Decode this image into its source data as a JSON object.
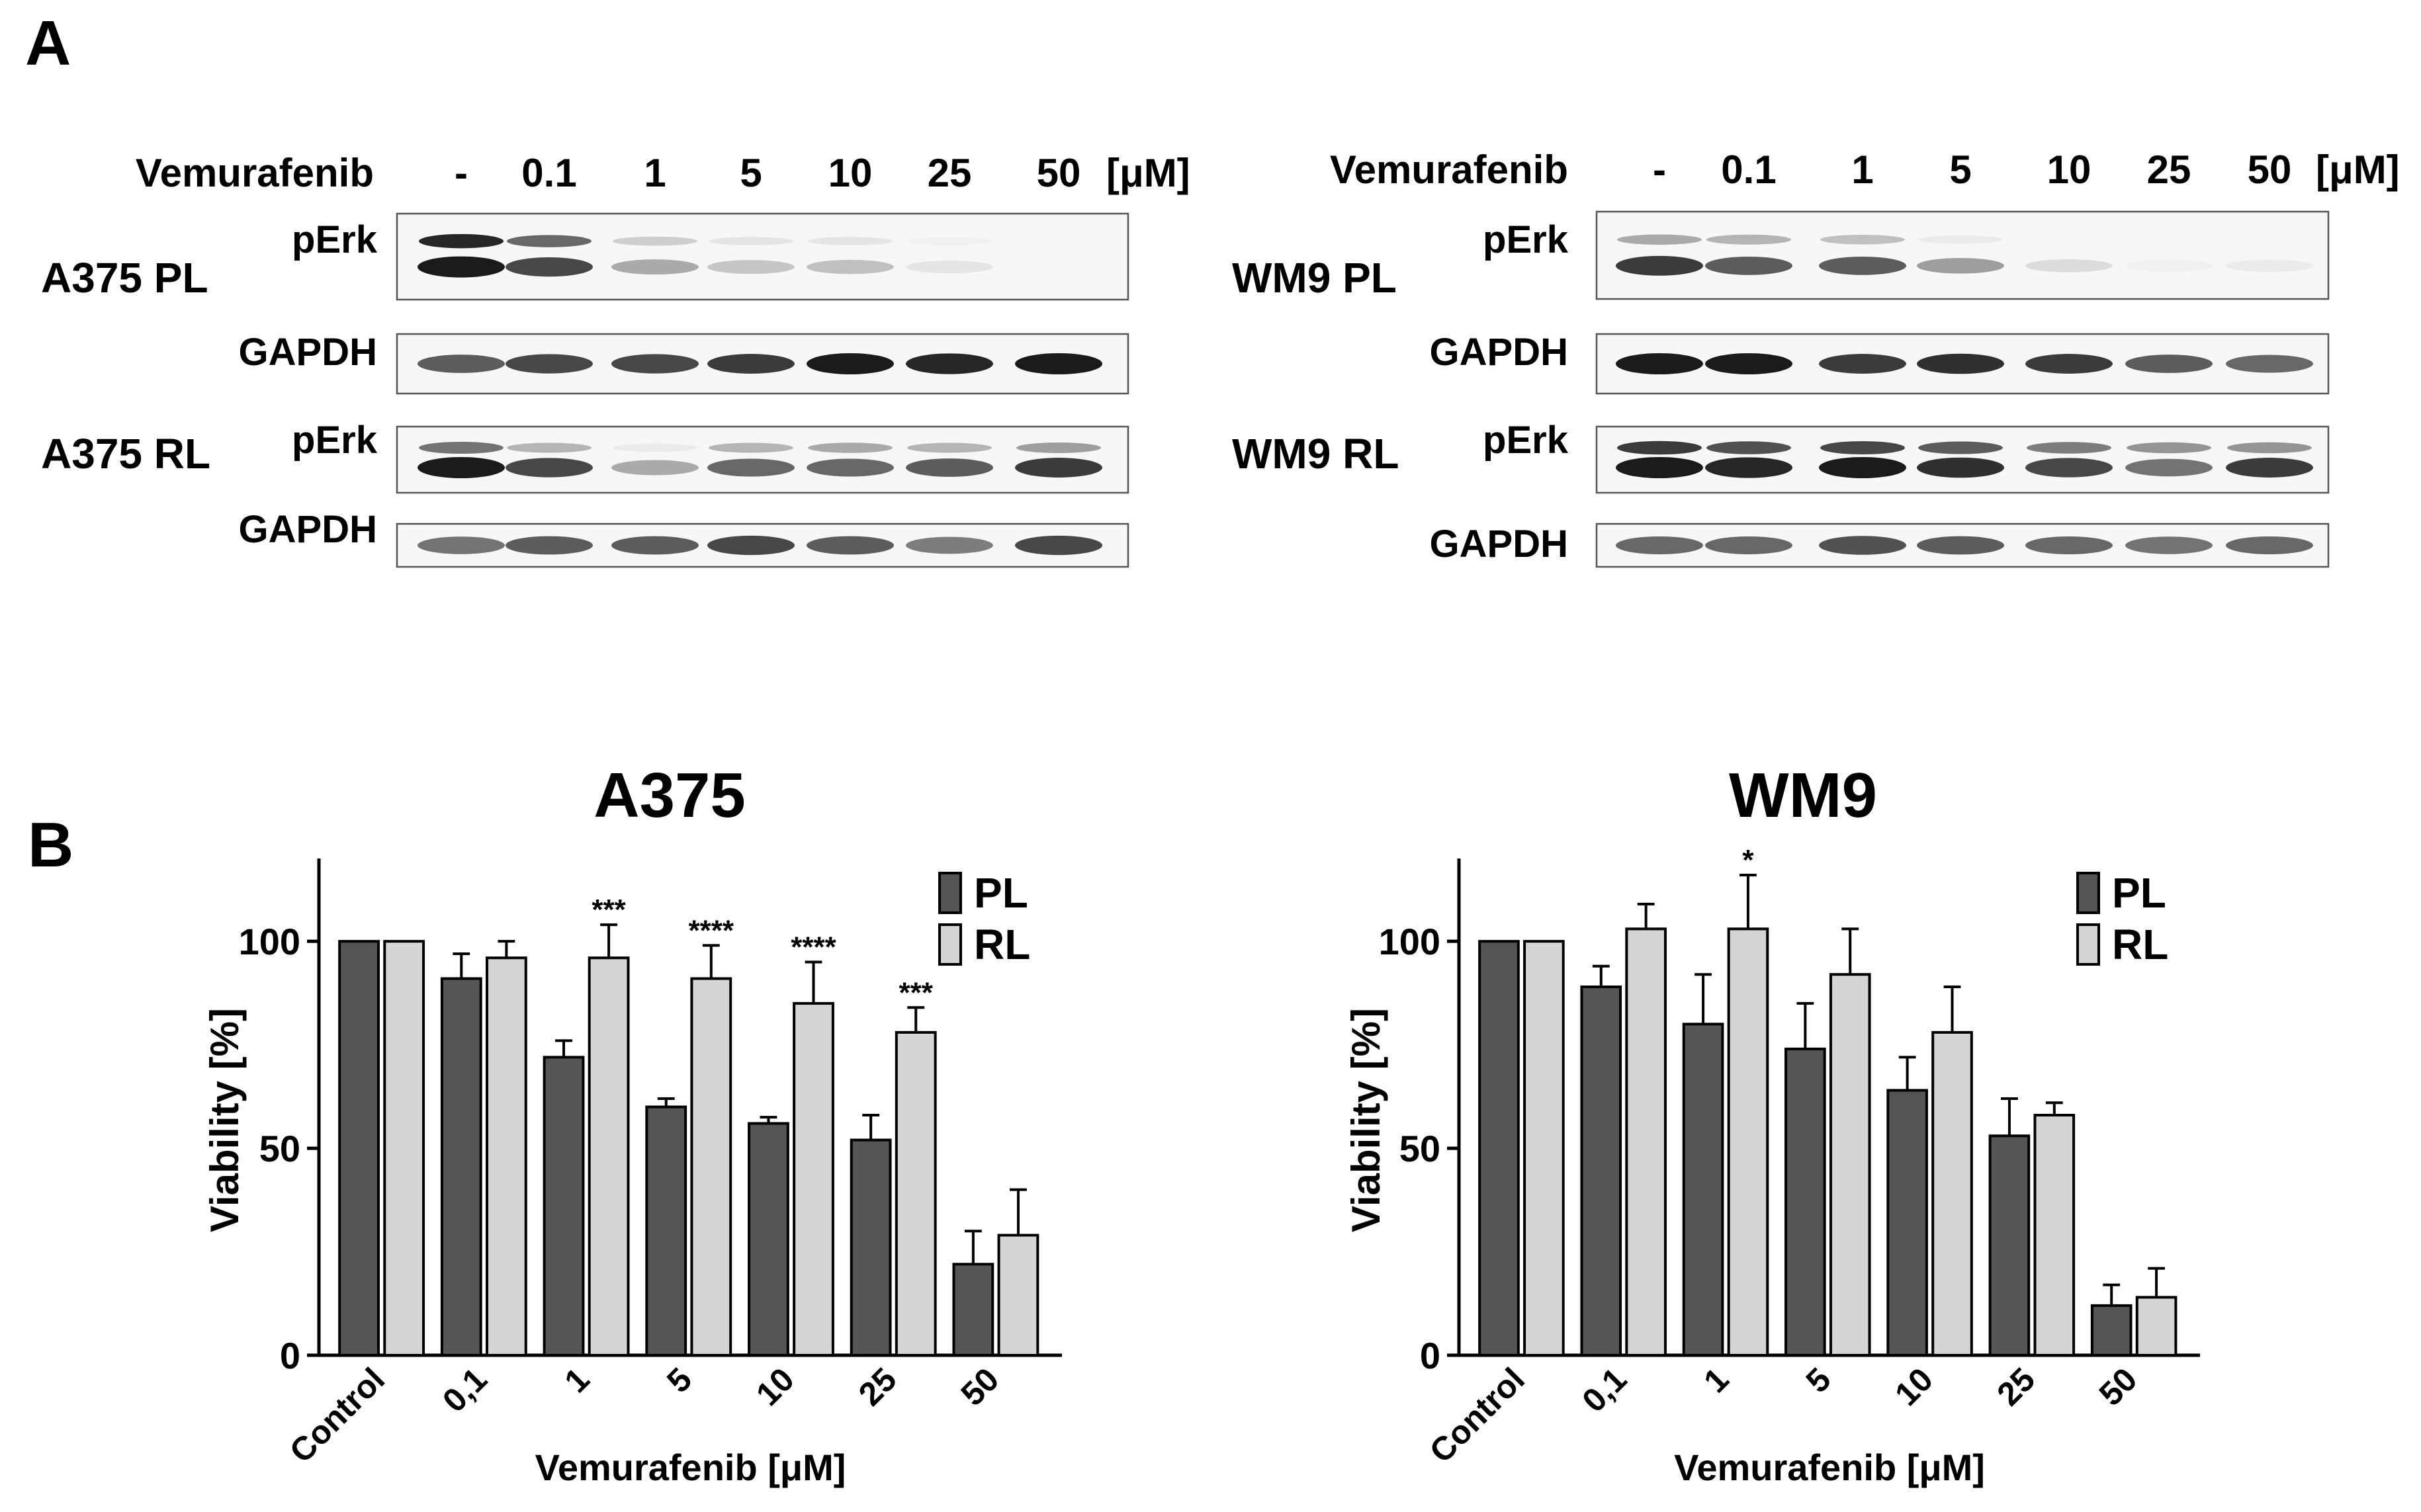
{
  "panel_a": {
    "letter": "A",
    "blots": [
      {
        "treatment_label": "Vemurafenib",
        "unit": "[μM]",
        "lanes": [
          "-",
          "0.1",
          "1",
          "5",
          "10",
          "25",
          "50"
        ],
        "groups": [
          {
            "cell_line": "A375 PL",
            "rows": [
              {
                "protein": "pErk",
                "upper_band": [
                  0.95,
                  0.65,
                  0.18,
                  0.08,
                  0.08,
                  0.03,
                  0.0
                ],
                "lower_band": [
                  1.0,
                  0.8,
                  0.35,
                  0.22,
                  0.25,
                  0.08,
                  0.0
                ]
              },
              {
                "protein": "GAPDH",
                "lower_band": [
                  0.7,
                  0.8,
                  0.8,
                  0.85,
                  1.0,
                  0.95,
                  1.0
                ]
              }
            ]
          },
          {
            "cell_line": "A375 RL",
            "rows": [
              {
                "protein": "pErk",
                "upper_band": [
                  0.6,
                  0.3,
                  0.05,
                  0.3,
                  0.35,
                  0.3,
                  0.4
                ],
                "lower_band": [
                  1.0,
                  0.8,
                  0.35,
                  0.65,
                  0.65,
                  0.7,
                  0.85
                ]
              },
              {
                "protein": "GAPDH",
                "lower_band": [
                  0.6,
                  0.7,
                  0.7,
                  0.8,
                  0.7,
                  0.55,
                  0.8
                ]
              }
            ]
          }
        ]
      },
      {
        "treatment_label": "Vemurafenib",
        "unit": "[μM]",
        "lanes": [
          "-",
          "0.1",
          "1",
          "5",
          "10",
          "25",
          "50"
        ],
        "groups": [
          {
            "cell_line": "WM9 PL",
            "rows": [
              {
                "protein": "pErk",
                "upper_band": [
                  0.35,
                  0.3,
                  0.25,
                  0.05,
                  0.0,
                  0.0,
                  0.0
                ],
                "lower_band": [
                  0.85,
                  0.7,
                  0.7,
                  0.4,
                  0.12,
                  0.03,
                  0.05
                ]
              },
              {
                "protein": "GAPDH",
                "lower_band": [
                  1.0,
                  1.0,
                  0.85,
                  0.9,
                  0.85,
                  0.7,
                  0.65
                ]
              }
            ]
          },
          {
            "cell_line": "WM9 RL",
            "rows": [
              {
                "protein": "pErk",
                "upper_band": [
                  0.85,
                  0.75,
                  0.8,
                  0.7,
                  0.55,
                  0.45,
                  0.45
                ],
                "lower_band": [
                  1.0,
                  0.95,
                  1.0,
                  0.9,
                  0.8,
                  0.6,
                  0.85
                ]
              },
              {
                "protein": "GAPDH",
                "lower_band": [
                  0.65,
                  0.65,
                  0.75,
                  0.7,
                  0.65,
                  0.6,
                  0.65
                ]
              }
            ]
          }
        ]
      }
    ]
  },
  "panel_b": {
    "letter": "B"
  },
  "colors": {
    "pl": "#555555",
    "rl": "#d5d5d5",
    "stroke": "#000000",
    "band": "#1a1a1a",
    "blot_bg": "#f7f7f7"
  },
  "chart_data": [
    {
      "type": "bar",
      "title": "A375",
      "xlabel": "Vemurafenib [μM]",
      "ylabel": "Viability [%]",
      "ylim": [
        0,
        120
      ],
      "yticks": [
        0,
        50,
        100
      ],
      "categories": [
        "Control",
        "0,1",
        "1",
        "5",
        "10",
        "25",
        "50"
      ],
      "series": [
        {
          "name": "PL",
          "values": [
            100,
            91,
            72,
            60,
            56,
            52,
            22
          ],
          "errors": [
            0,
            6,
            4,
            2,
            1.5,
            6,
            8
          ]
        },
        {
          "name": "RL",
          "values": [
            100,
            96,
            96,
            91,
            85,
            78,
            29
          ],
          "errors": [
            0,
            4,
            8,
            8,
            10,
            6,
            11
          ]
        }
      ],
      "annotations": [
        "",
        "",
        "***",
        "****",
        "****",
        "***",
        ""
      ],
      "legend": "top-right"
    },
    {
      "type": "bar",
      "title": "WM9",
      "xlabel": "Vemurafenib [μM]",
      "ylabel": "Viability [%]",
      "ylim": [
        0,
        120
      ],
      "yticks": [
        0,
        50,
        100
      ],
      "categories": [
        "Control",
        "0,1",
        "1",
        "5",
        "10",
        "25",
        "50"
      ],
      "series": [
        {
          "name": "PL",
          "values": [
            100,
            89,
            80,
            74,
            64,
            53,
            12
          ],
          "errors": [
            0,
            5,
            12,
            11,
            8,
            9,
            5
          ]
        },
        {
          "name": "RL",
          "values": [
            100,
            103,
            103,
            92,
            78,
            58,
            14
          ],
          "errors": [
            0,
            6,
            13,
            11,
            11,
            3,
            7
          ]
        }
      ],
      "annotations": [
        "",
        "",
        "*",
        "",
        "",
        "",
        ""
      ],
      "legend": "top-right"
    }
  ]
}
